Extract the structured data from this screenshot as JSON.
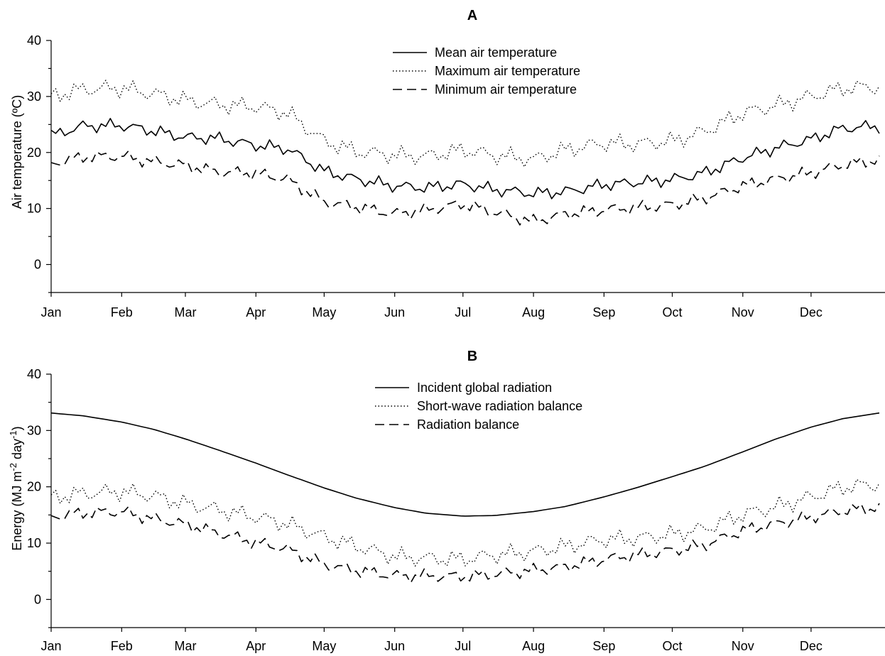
{
  "chart_data": [
    {
      "type": "line",
      "title": "A",
      "ylabel": "Air temperature (ºC)",
      "xlabel": "",
      "categories": [
        "Jan",
        "Feb",
        "Mar",
        "Apr",
        "May",
        "Jun",
        "Jul",
        "Aug",
        "Sep",
        "Oct",
        "Nov",
        "Dec"
      ],
      "x": [
        1,
        15,
        32,
        46,
        60,
        74,
        91,
        105,
        121,
        135,
        152,
        166,
        182,
        196,
        213,
        227,
        244,
        258,
        274,
        288,
        305,
        319,
        335,
        349,
        365
      ],
      "ylim": [
        -5,
        40
      ],
      "yticks": [
        0,
        10,
        20,
        30,
        40
      ],
      "legend_position": "top-center",
      "grid": false,
      "series": [
        {
          "name": "Mean air temperature",
          "dash": "solid",
          "values": [
            23.0,
            24.5,
            24.5,
            23.5,
            22.5,
            22.5,
            21.5,
            21.0,
            17.0,
            15.5,
            14.0,
            13.5,
            14.0,
            13.0,
            12.5,
            13.0,
            14.5,
            15.0,
            15.5,
            16.5,
            19.0,
            20.5,
            22.0,
            24.0,
            24.5
          ]
        },
        {
          "name": "Maximum air temperature",
          "dash": "dotted",
          "values": [
            30.0,
            31.0,
            31.0,
            30.0,
            29.0,
            28.5,
            28.5,
            27.5,
            22.5,
            20.5,
            19.5,
            19.0,
            20.0,
            19.0,
            18.5,
            20.5,
            22.0,
            22.0,
            22.5,
            24.0,
            27.0,
            28.0,
            29.5,
            31.0,
            31.5
          ]
        },
        {
          "name": "Minimum air temperature",
          "dash": "dashed",
          "values": [
            18.0,
            19.0,
            19.0,
            18.0,
            17.5,
            16.5,
            16.5,
            15.5,
            11.5,
            10.5,
            9.0,
            9.5,
            10.5,
            9.0,
            7.5,
            9.0,
            10.0,
            10.5,
            11.0,
            12.0,
            14.0,
            15.0,
            16.0,
            17.5,
            18.5
          ]
        }
      ]
    },
    {
      "type": "line",
      "title": "B",
      "ylabel": "Energy (MJ m-2 day-1)",
      "xlabel": "",
      "categories": [
        "Jan",
        "Feb",
        "Mar",
        "Apr",
        "May",
        "Jun",
        "Jul",
        "Aug",
        "Sep",
        "Oct",
        "Nov",
        "Dec"
      ],
      "x": [
        1,
        15,
        32,
        46,
        60,
        74,
        91,
        105,
        121,
        135,
        152,
        166,
        182,
        196,
        213,
        227,
        244,
        258,
        274,
        288,
        305,
        319,
        335,
        349,
        365
      ],
      "ylim": [
        -5,
        40
      ],
      "yticks": [
        0,
        10,
        20,
        30,
        40
      ],
      "legend_position": "top-center",
      "grid": false,
      "series": [
        {
          "name": "Incident global radiation",
          "dash": "solid",
          "values": [
            33.1,
            32.6,
            31.5,
            30.2,
            28.5,
            26.6,
            24.2,
            22.1,
            19.8,
            18.0,
            16.3,
            15.3,
            14.8,
            14.9,
            15.6,
            16.5,
            18.2,
            19.8,
            21.8,
            23.6,
            26.2,
            28.4,
            30.6,
            32.1,
            33.1
          ]
        },
        {
          "name": "Short-wave radiation balance",
          "dash": "dotted",
          "values": [
            18.5,
            19.0,
            19.0,
            18.0,
            16.5,
            15.5,
            14.5,
            13.5,
            11.5,
            10.0,
            8.0,
            7.5,
            7.0,
            7.5,
            8.0,
            9.0,
            10.5,
            11.0,
            12.0,
            13.0,
            15.5,
            16.5,
            18.0,
            19.5,
            20.0
          ]
        },
        {
          "name": "Radiation balance",
          "dash": "dashed",
          "values": [
            15.0,
            15.5,
            15.5,
            14.0,
            13.0,
            11.5,
            10.0,
            9.0,
            6.5,
            5.5,
            4.5,
            4.3,
            4.0,
            4.2,
            4.8,
            5.5,
            7.0,
            8.0,
            9.0,
            10.0,
            12.5,
            13.5,
            14.5,
            15.5,
            16.0
          ]
        }
      ]
    }
  ]
}
